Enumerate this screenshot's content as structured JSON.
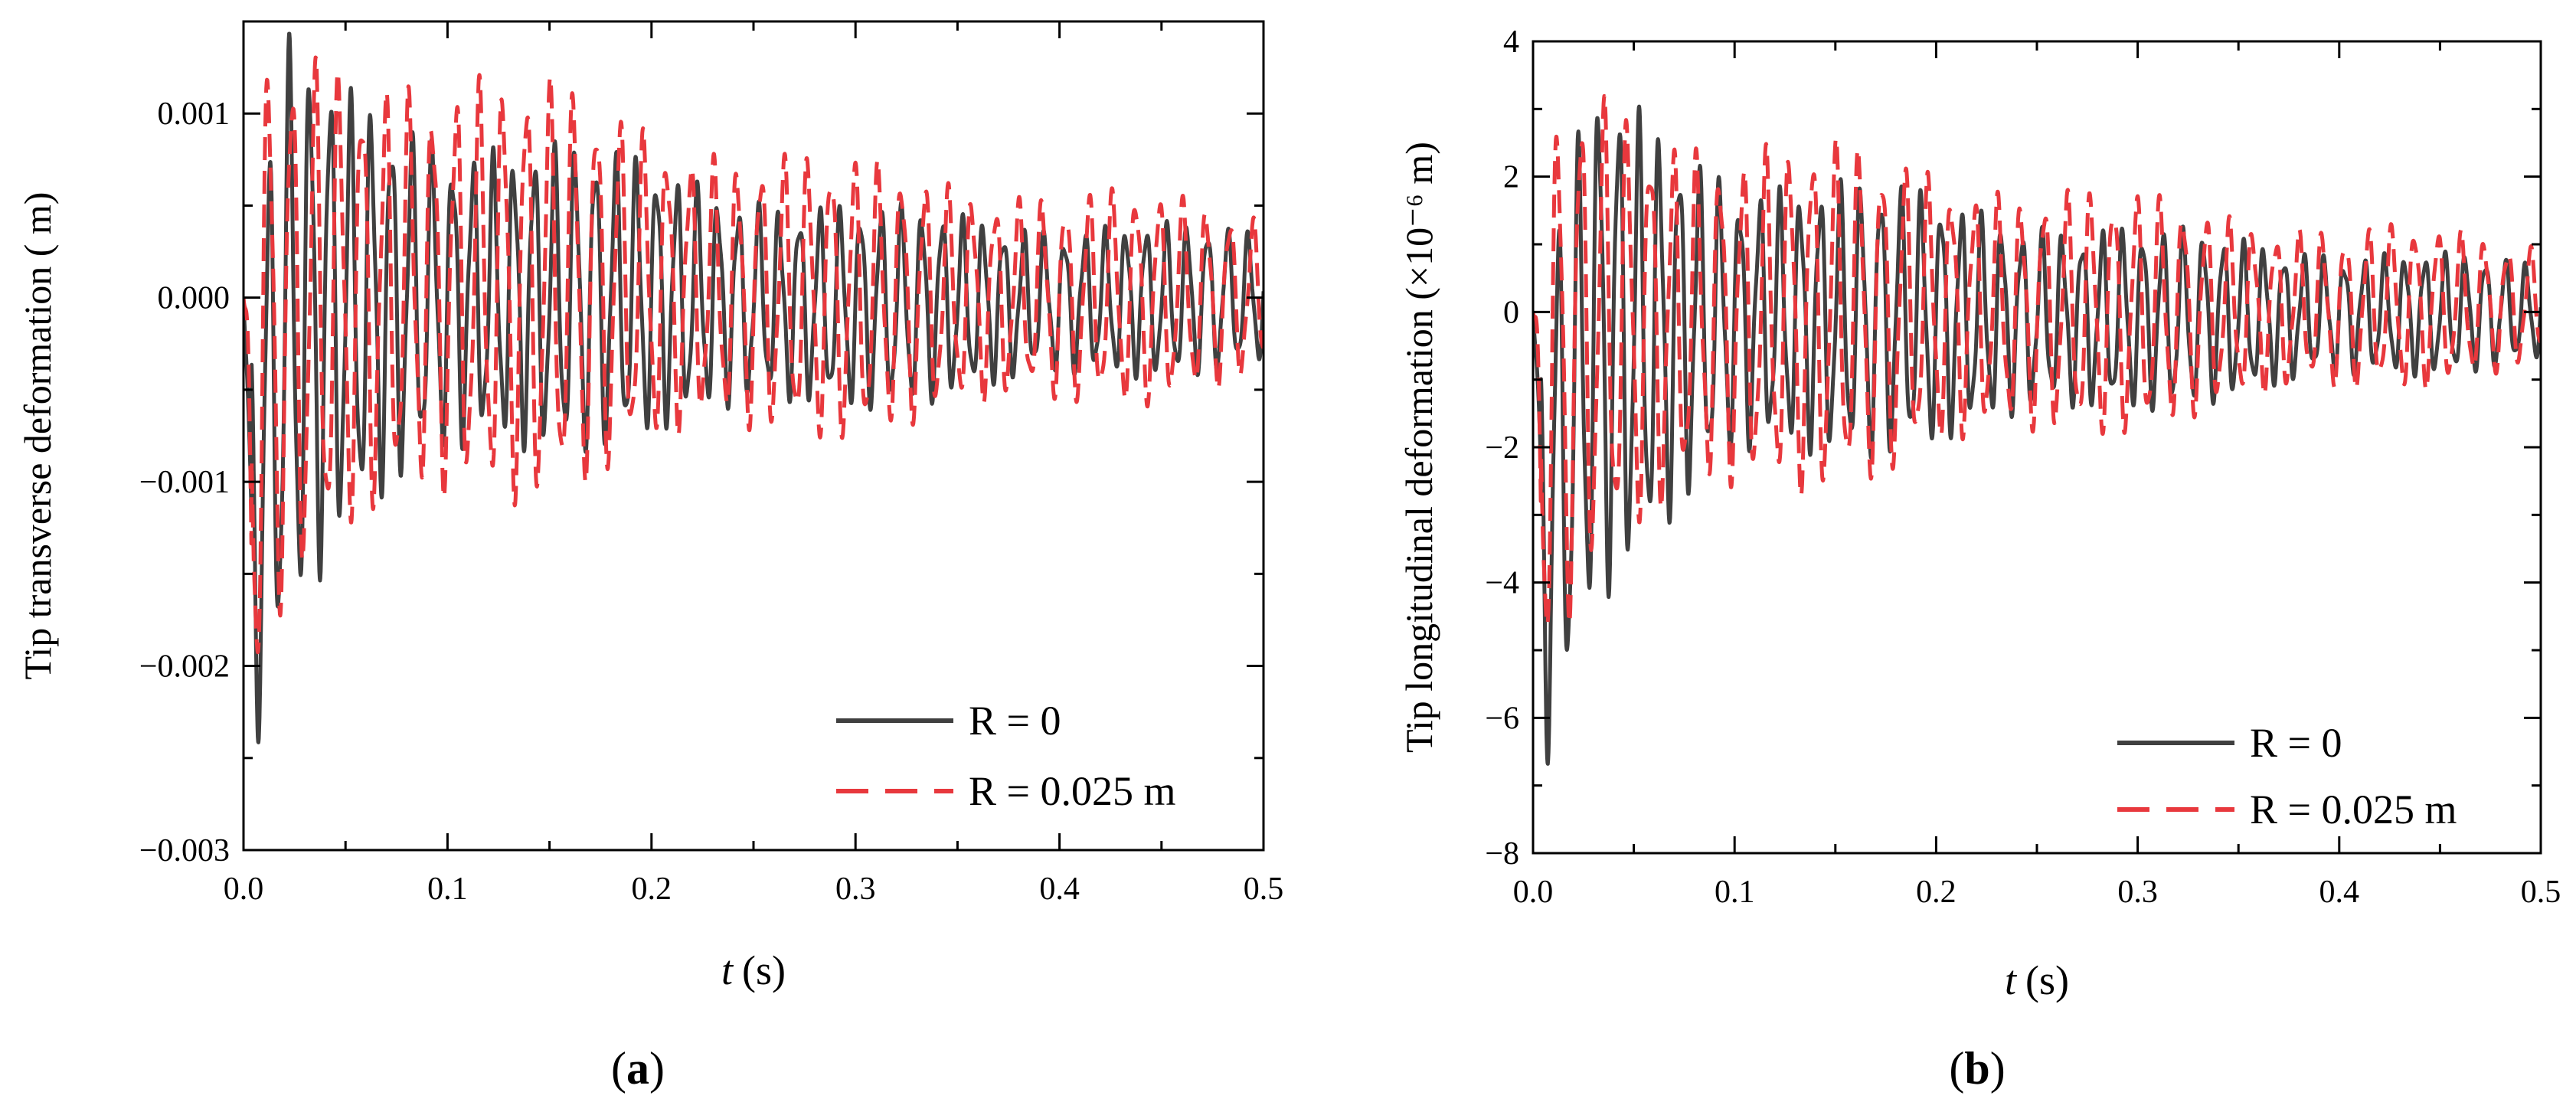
{
  "chart_data": [
    {
      "type": "line",
      "panel_label": "a",
      "xlabel": "t",
      "xunit": "(s)",
      "ylabel": "Tip transverse deformation ( m)",
      "xlim": [
        0,
        0.5
      ],
      "ylim": [
        -0.003,
        0.0015
      ],
      "xticks": [
        0.0,
        0.1,
        0.2,
        0.3,
        0.4,
        0.5
      ],
      "xtick_labels": [
        "0.0",
        "0.1",
        "0.2",
        "0.3",
        "0.4",
        "0.5"
      ],
      "yticks": [
        -0.003,
        -0.002,
        -0.001,
        0.0,
        0.001
      ],
      "ytick_labels": [
        "−0.003",
        "−0.002",
        "−0.001",
        "0.000",
        "0.001"
      ],
      "legend": {
        "position": "lower-right",
        "labels": [
          "R = 0",
          "R = 0.025 m"
        ]
      },
      "series": [
        {
          "name": "R = 0",
          "style": "solid",
          "color": "#404040",
          "samples": {
            "t": [
              0.0,
              0.005,
              0.02,
              0.05,
              0.1,
              0.2,
              0.3,
              0.4,
              0.5
            ],
            "approx_upper": [
              0.0,
              0.0,
              0.0011,
              0.0009,
              0.0008,
              0.0006,
              0.0004,
              0.00035,
              0.0003
            ],
            "approx_lower": [
              -0.0008,
              -0.0023,
              -0.0015,
              -0.001,
              -0.0008,
              -0.0006,
              -0.0005,
              -0.0004,
              -0.0003
            ]
          },
          "dominant_frequency_hz": 100,
          "initial_offset": -0.0009
        },
        {
          "name": "R = 0.025 m",
          "style": "dashed",
          "color": "#e8383d",
          "samples": {
            "t": [
              0.0,
              0.005,
              0.02,
              0.05,
              0.1,
              0.2,
              0.3,
              0.4,
              0.5
            ],
            "approx_upper": [
              0.0,
              0.001,
              0.001,
              0.0011,
              0.0011,
              0.0008,
              0.0006,
              0.0005,
              0.0004
            ],
            "approx_lower": [
              -0.0008,
              -0.0019,
              -0.0013,
              -0.0011,
              -0.001,
              -0.0007,
              -0.0006,
              -0.0005,
              -0.0004
            ]
          },
          "dominant_frequency_hz": 87,
          "initial_offset": -0.0006
        }
      ]
    },
    {
      "type": "line",
      "panel_label": "b",
      "xlabel": "t",
      "xunit": "(s)",
      "ylabel": "Tip longitudinal deformation  (×10⁻⁶ m)",
      "xlim": [
        0,
        0.5
      ],
      "ylim": [
        -8,
        4
      ],
      "xticks": [
        0.0,
        0.1,
        0.2,
        0.3,
        0.4,
        0.5
      ],
      "xtick_labels": [
        "0.0",
        "0.1",
        "0.2",
        "0.3",
        "0.4",
        "0.5"
      ],
      "yticks": [
        -8,
        -6,
        -4,
        -2,
        0,
        2,
        4
      ],
      "ytick_labels": [
        "−8",
        "−6",
        "−4",
        "−2",
        "0",
        "2",
        "4"
      ],
      "legend": {
        "position": "lower-right",
        "labels": [
          "R = 0",
          "R = 0.025 m"
        ]
      },
      "series": [
        {
          "name": "R = 0",
          "style": "solid",
          "color": "#404040",
          "samples": {
            "t": [
              0.0,
              0.005,
              0.03,
              0.1,
              0.2,
              0.3,
              0.4,
              0.5
            ],
            "approx_upper": [
              0.0,
              0.0,
              2.6,
              1.8,
              1.4,
              1.0,
              0.8,
              0.6
            ],
            "approx_lower": [
              -2.0,
              -6.3,
              -3.5,
              -2.0,
              -1.6,
              -1.2,
              -0.9,
              -0.6
            ]
          },
          "dominant_frequency_hz": 100,
          "initial_offset": -1.5
        },
        {
          "name": "R = 0.025 m",
          "style": "dashed",
          "color": "#e8383d",
          "samples": {
            "t": [
              0.0,
              0.005,
              0.03,
              0.1,
              0.2,
              0.3,
              0.4,
              0.5
            ],
            "approx_upper": [
              0.0,
              2.0,
              2.6,
              2.2,
              1.8,
              1.4,
              1.1,
              0.9
            ],
            "approx_lower": [
              -1.5,
              -4.5,
              -3.0,
              -2.4,
              -1.8,
              -1.4,
              -1.0,
              -0.7
            ]
          },
          "dominant_frequency_hz": 87,
          "initial_offset": -1.0
        }
      ]
    }
  ]
}
